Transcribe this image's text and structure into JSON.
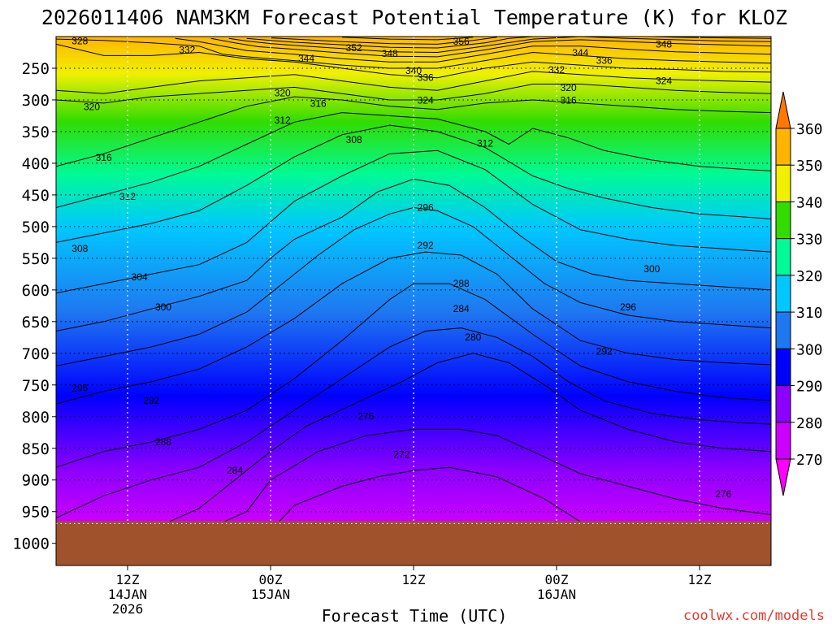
{
  "chart_data": {
    "type": "heatmap",
    "title": "2026011406 NAM3KM Forecast Potential Temperature (K) for KLOZ",
    "xlabel": "Forecast Time (UTC)",
    "ylabel": "",
    "watermark": "coolwx.com/models",
    "x_ticks": [
      {
        "hour": 6,
        "label_lines": [
          "12Z",
          "14JAN",
          "2026"
        ]
      },
      {
        "hour": 18,
        "label_lines": [
          "00Z",
          "15JAN"
        ]
      },
      {
        "hour": 30,
        "label_lines": [
          "12Z"
        ]
      },
      {
        "hour": 42,
        "label_lines": [
          "00Z",
          "16JAN"
        ]
      },
      {
        "hour": 54,
        "label_lines": [
          "12Z"
        ]
      }
    ],
    "x_range_hours": [
      0,
      60
    ],
    "y_axis": "pressure (hPa), reversed",
    "y_ticks": [
      250,
      300,
      350,
      400,
      450,
      500,
      550,
      600,
      650,
      700,
      750,
      800,
      850,
      900,
      950,
      1000
    ],
    "y_range": [
      200,
      1035
    ],
    "surface_pressure": 965,
    "colorbar": {
      "levels": [
        270,
        280,
        290,
        300,
        310,
        320,
        330,
        340,
        350,
        360
      ],
      "labels": [
        "270",
        "280",
        "290",
        "300",
        "310",
        "320",
        "330",
        "340",
        "350",
        "360"
      ],
      "colors": [
        "#ff00ff",
        "#cc00ff",
        "#8c00ff",
        "#0000ff",
        "#1e78f0",
        "#00c8ff",
        "#00fa96",
        "#32dc00",
        "#f0f000",
        "#ffb400",
        "#ff7800"
      ],
      "extends": "both"
    },
    "series": [
      {
        "name": "272",
        "x": [
          0,
          8,
          14,
          18,
          20,
          24,
          27,
          30,
          33,
          37,
          41,
          46,
          52,
          60
        ],
        "y": [
          990,
          990,
          990,
          980,
          940,
          910,
          895,
          885,
          880,
          895,
          930,
          990,
          990,
          990
        ]
      },
      {
        "name": "276",
        "x": [
          0,
          8,
          13,
          16,
          18,
          22,
          26,
          30,
          34,
          37,
          40,
          44,
          48,
          52,
          56,
          60
        ],
        "y": [
          990,
          990,
          975,
          950,
          900,
          855,
          830,
          820,
          820,
          830,
          855,
          890,
          910,
          930,
          945,
          955
        ]
      },
      {
        "name": "280",
        "x": [
          0,
          4,
          9,
          12,
          15,
          18,
          21,
          25,
          29,
          32,
          35,
          38,
          41,
          44,
          48,
          52,
          56,
          60
        ],
        "y": [
          990,
          985,
          970,
          945,
          900,
          855,
          815,
          780,
          745,
          715,
          700,
          715,
          750,
          790,
          820,
          840,
          850,
          855
        ]
      },
      {
        "name": "284",
        "x": [
          0,
          4,
          8,
          12,
          16,
          20,
          24,
          28,
          31,
          34,
          37,
          40,
          43,
          46,
          50,
          54,
          58,
          60
        ],
        "y": [
          960,
          925,
          900,
          880,
          840,
          790,
          740,
          690,
          665,
          660,
          675,
          705,
          745,
          775,
          795,
          805,
          810,
          812
        ]
      },
      {
        "name": "288",
        "x": [
          0,
          4,
          8,
          12,
          16,
          20,
          24,
          28,
          30,
          33,
          36,
          40,
          44,
          48,
          52,
          56,
          60
        ],
        "y": [
          880,
          855,
          840,
          820,
          790,
          740,
          680,
          615,
          590,
          590,
          615,
          670,
          720,
          745,
          760,
          770,
          775
        ]
      },
      {
        "name": "292",
        "x": [
          0,
          4,
          8,
          12,
          16,
          20,
          24,
          28,
          31,
          34,
          37,
          40,
          44,
          48,
          52,
          56,
          60
        ],
        "y": [
          780,
          760,
          745,
          725,
          690,
          645,
          590,
          550,
          540,
          545,
          575,
          630,
          680,
          700,
          710,
          715,
          718
        ]
      },
      {
        "name": "296",
        "x": [
          0,
          4,
          8,
          12,
          16,
          19,
          22,
          25,
          28,
          30,
          32,
          35,
          38,
          41,
          44,
          48,
          52,
          56,
          60
        ],
        "y": [
          720,
          705,
          690,
          670,
          635,
          590,
          545,
          505,
          480,
          470,
          475,
          500,
          545,
          590,
          620,
          640,
          650,
          655,
          660
        ]
      },
      {
        "name": "300",
        "x": [
          0,
          4,
          8,
          12,
          16,
          18,
          20,
          24,
          27,
          30,
          33,
          36,
          39,
          42,
          45,
          48,
          52,
          56,
          60
        ],
        "y": [
          665,
          650,
          630,
          610,
          585,
          550,
          520,
          485,
          445,
          425,
          435,
          470,
          515,
          555,
          575,
          585,
          590,
          595,
          600
        ]
      },
      {
        "name": "304",
        "x": [
          0,
          4,
          8,
          12,
          16,
          20,
          24,
          28,
          32,
          36,
          40,
          44,
          48,
          52,
          56,
          60
        ],
        "y": [
          605,
          590,
          575,
          560,
          525,
          460,
          420,
          385,
          380,
          410,
          465,
          505,
          520,
          530,
          535,
          540
        ]
      },
      {
        "name": "308",
        "x": [
          0,
          4,
          8,
          12,
          16,
          20,
          24,
          28,
          32,
          36,
          40,
          43,
          46,
          50,
          54,
          58,
          60
        ],
        "y": [
          525,
          510,
          495,
          475,
          435,
          390,
          355,
          340,
          350,
          375,
          420,
          440,
          455,
          470,
          480,
          485,
          488
        ]
      },
      {
        "name": "312",
        "x": [
          0,
          4,
          8,
          12,
          16,
          20,
          24,
          28,
          32,
          36,
          38,
          40,
          43,
          46,
          50,
          54,
          58,
          60
        ],
        "y": [
          470,
          450,
          430,
          405,
          370,
          335,
          320,
          325,
          330,
          350,
          370,
          345,
          360,
          380,
          395,
          405,
          410,
          412
        ]
      },
      {
        "name": "316",
        "x": [
          0,
          4,
          8,
          12,
          16,
          20,
          24,
          28,
          32,
          36,
          40,
          44,
          48,
          52,
          56,
          60
        ],
        "y": [
          405,
          385,
          360,
          335,
          310,
          295,
          300,
          310,
          315,
          305,
          300,
          305,
          310,
          315,
          318,
          320
        ]
      },
      {
        "name": "320",
        "x": [
          0,
          4,
          8,
          12,
          16,
          20,
          24,
          28,
          32,
          36,
          40,
          44,
          48,
          52,
          56,
          60
        ],
        "y": [
          300,
          305,
          295,
          290,
          285,
          280,
          290,
          300,
          300,
          290,
          275,
          275,
          280,
          285,
          288,
          290
        ]
      },
      {
        "name": "324",
        "x": [
          0,
          4,
          8,
          12,
          16,
          20,
          24,
          28,
          32,
          36,
          40,
          44,
          48,
          52,
          56,
          60
        ],
        "y": [
          285,
          290,
          280,
          270,
          265,
          260,
          270,
          280,
          285,
          270,
          255,
          260,
          265,
          268,
          270,
          272
        ]
      },
      {
        "name": "328",
        "x": [
          0,
          4,
          8,
          12,
          16,
          20,
          24,
          28,
          32,
          36,
          40,
          44,
          48,
          52,
          56,
          60
        ],
        "y": [
          212,
          230,
          230,
          225,
          235,
          240,
          250,
          260,
          265,
          250,
          240,
          245,
          250,
          252,
          255,
          256
        ]
      },
      {
        "name": "332",
        "x": [
          0,
          4,
          8,
          12,
          14,
          16,
          20,
          24,
          28,
          32,
          36,
          40,
          44,
          48,
          52,
          56,
          60
        ],
        "y": [
          204,
          206,
          210,
          215,
          228,
          232,
          238,
          245,
          250,
          250,
          238,
          225,
          230,
          235,
          238,
          240,
          242
        ]
      },
      {
        "name": "336",
        "x": [
          10,
          12,
          14,
          16,
          20,
          24,
          28,
          32,
          36,
          40,
          44,
          48,
          52,
          56,
          60
        ],
        "y": [
          203,
          208,
          215,
          222,
          228,
          235,
          240,
          240,
          228,
          215,
          215,
          220,
          224,
          226,
          228
        ]
      },
      {
        "name": "340",
        "x": [
          13,
          15,
          17,
          20,
          24,
          28,
          32,
          36,
          40,
          44,
          48,
          52,
          56,
          60
        ],
        "y": [
          203,
          210,
          216,
          220,
          226,
          231,
          232,
          221,
          208,
          205,
          208,
          211,
          213,
          215
        ]
      },
      {
        "name": "344",
        "x": [
          14.5,
          16,
          18,
          20,
          24,
          28,
          32,
          36,
          40,
          44,
          48,
          52,
          56,
          60
        ],
        "y": [
          203,
          207,
          211,
          214,
          219,
          224,
          225,
          215,
          204,
          200,
          203,
          205,
          207,
          208
        ]
      },
      {
        "name": "348",
        "x": [
          16,
          18,
          20,
          24,
          28,
          32,
          36,
          38,
          40,
          44,
          48,
          52,
          56,
          60
        ],
        "y": [
          203,
          206,
          209,
          213,
          217,
          218,
          210,
          203,
          200,
          198,
          199,
          201,
          202,
          203
        ]
      },
      {
        "name": "352",
        "x": [
          18,
          20,
          24,
          28,
          32,
          35,
          37
        ],
        "y": [
          202,
          204,
          208,
          211,
          212,
          206,
          201
        ]
      },
      {
        "name": "356",
        "x": [
          24,
          28,
          32,
          35
        ],
        "y": [
          201,
          204,
          205,
          201
        ]
      }
    ],
    "contour_labels": [
      {
        "text": "328",
        "hour": 2,
        "p": 212
      },
      {
        "text": "332",
        "hour": 11,
        "p": 226
      },
      {
        "text": "320",
        "hour": 3,
        "p": 316
      },
      {
        "text": "316",
        "hour": 4,
        "p": 396
      },
      {
        "text": "312",
        "hour": 6,
        "p": 458
      },
      {
        "text": "308",
        "hour": 2,
        "p": 540
      },
      {
        "text": "304",
        "hour": 7,
        "p": 585
      },
      {
        "text": "300",
        "hour": 9,
        "p": 632
      },
      {
        "text": "296",
        "hour": 2,
        "p": 760
      },
      {
        "text": "292",
        "hour": 8,
        "p": 780
      },
      {
        "text": "288",
        "hour": 9,
        "p": 845
      },
      {
        "text": "284",
        "hour": 15,
        "p": 890
      },
      {
        "text": "276",
        "hour": 26,
        "p": 805
      },
      {
        "text": "272",
        "hour": 29,
        "p": 865
      },
      {
        "text": "280",
        "hour": 35,
        "p": 680
      },
      {
        "text": "284",
        "hour": 34,
        "p": 635
      },
      {
        "text": "288",
        "hour": 34,
        "p": 595
      },
      {
        "text": "292",
        "hour": 31,
        "p": 535
      },
      {
        "text": "296",
        "hour": 31,
        "p": 475
      },
      {
        "text": "308",
        "hour": 25,
        "p": 368
      },
      {
        "text": "312",
        "hour": 19,
        "p": 337
      },
      {
        "text": "316",
        "hour": 22,
        "p": 311
      },
      {
        "text": "320",
        "hour": 19,
        "p": 294
      },
      {
        "text": "324",
        "hour": 31,
        "p": 306
      },
      {
        "text": "336",
        "hour": 31,
        "p": 270
      },
      {
        "text": "340",
        "hour": 30,
        "p": 259
      },
      {
        "text": "344",
        "hour": 21,
        "p": 240
      },
      {
        "text": "348",
        "hour": 28,
        "p": 232
      },
      {
        "text": "352",
        "hour": 25,
        "p": 223
      },
      {
        "text": "356",
        "hour": 34,
        "p": 213
      },
      {
        "text": "312",
        "hour": 36,
        "p": 374
      },
      {
        "text": "320",
        "hour": 43,
        "p": 286
      },
      {
        "text": "316",
        "hour": 43,
        "p": 306
      },
      {
        "text": "324",
        "hour": 51,
        "p": 275
      },
      {
        "text": "332",
        "hour": 42,
        "p": 258
      },
      {
        "text": "336",
        "hour": 46,
        "p": 243
      },
      {
        "text": "344",
        "hour": 44,
        "p": 231
      },
      {
        "text": "348",
        "hour": 51,
        "p": 217
      },
      {
        "text": "300",
        "hour": 50,
        "p": 572
      },
      {
        "text": "296",
        "hour": 48,
        "p": 632
      },
      {
        "text": "292",
        "hour": 46,
        "p": 702
      },
      {
        "text": "276",
        "hour": 56,
        "p": 927
      }
    ]
  }
}
